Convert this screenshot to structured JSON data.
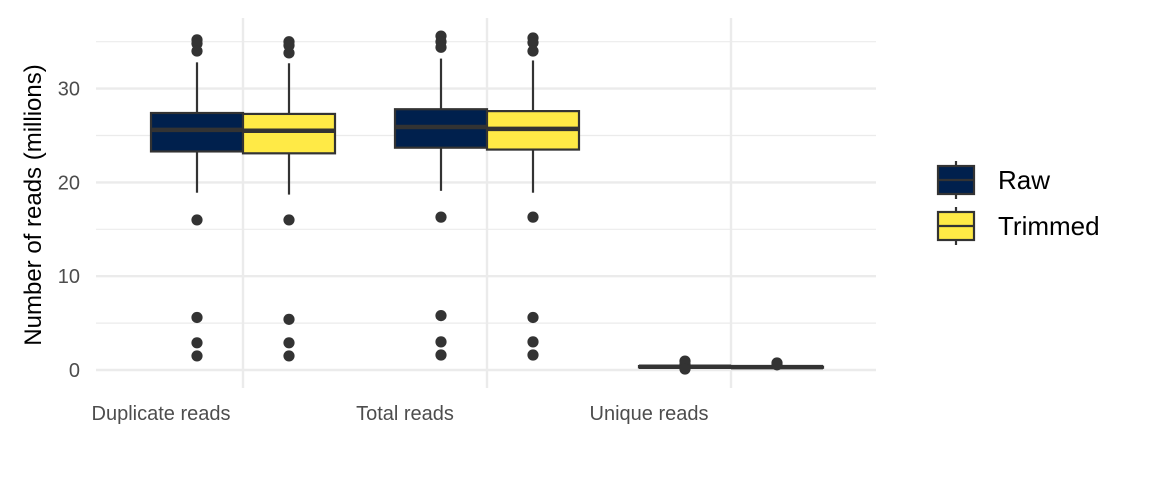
{
  "chart_data": {
    "type": "boxplot",
    "title": "",
    "xlabel": "",
    "ylabel": "Number of reads (millions)",
    "ylim": [
      -1,
      37
    ],
    "yticks": [
      0,
      10,
      20,
      30
    ],
    "grid": true,
    "legend_position": "right",
    "categories": [
      "Duplicate reads",
      "Total reads",
      "Unique reads"
    ],
    "series": [
      {
        "name": "Raw",
        "color": "#00204D",
        "boxes": [
          {
            "q1": 23.3,
            "median": 25.6,
            "q3": 27.4,
            "whisker_low": 18.9,
            "whisker_high": 32.8,
            "outliers": [
              35.2,
              34.8,
              34.0,
              16.0,
              5.6,
              2.9,
              1.5
            ]
          },
          {
            "q1": 23.7,
            "median": 25.9,
            "q3": 27.8,
            "whisker_low": 19.1,
            "whisker_high": 33.2,
            "outliers": [
              35.6,
              35.0,
              34.4,
              16.3,
              5.8,
              3.0,
              1.6
            ]
          },
          {
            "q1": 0.28,
            "median": 0.35,
            "q3": 0.42,
            "whisker_low": 0.2,
            "whisker_high": 0.5,
            "outliers": [
              0.95,
              0.6,
              0.1
            ]
          }
        ]
      },
      {
        "name": "Trimmed",
        "color": "#FFEA46",
        "boxes": [
          {
            "q1": 23.1,
            "median": 25.5,
            "q3": 27.3,
            "whisker_low": 18.7,
            "whisker_high": 32.7,
            "outliers": [
              35.0,
              34.6,
              33.8,
              16.0,
              5.4,
              2.9,
              1.5
            ]
          },
          {
            "q1": 23.5,
            "median": 25.7,
            "q3": 27.6,
            "whisker_low": 18.9,
            "whisker_high": 33.0,
            "outliers": [
              35.4,
              34.9,
              34.0,
              16.3,
              5.6,
              3.0,
              1.6
            ]
          },
          {
            "q1": 0.25,
            "median": 0.3,
            "q3": 0.35,
            "whisker_low": 0.2,
            "whisker_high": 0.4,
            "outliers": [
              0.75,
              0.55
            ]
          }
        ]
      }
    ]
  }
}
